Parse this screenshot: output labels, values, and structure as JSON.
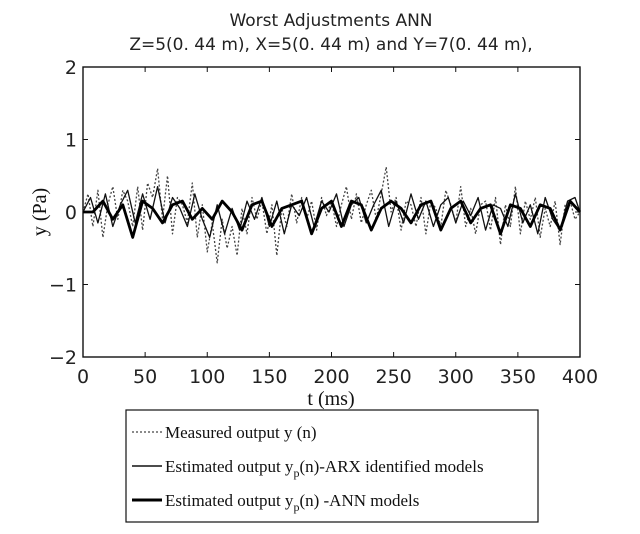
{
  "chart_data": {
    "type": "line",
    "title": "Worst Adjustments ANN",
    "subtitle": "Z=5(0. 44 m), X=5(0. 44 m) and Y=7(0. 44 m),",
    "xlabel": "t (ms)",
    "ylabel": "y (Pa)",
    "xlim": [
      0,
      400
    ],
    "ylim": [
      -2,
      2
    ],
    "xticks": [
      "0",
      "50",
      "100",
      "150",
      "200",
      "250",
      "300",
      "350",
      "400"
    ],
    "yticks": [
      "2",
      "1",
      "0",
      "−1",
      "−2"
    ],
    "ytick_values": [
      2,
      1,
      0,
      -1,
      -2
    ],
    "xtick_values": [
      0,
      50,
      100,
      150,
      200,
      250,
      300,
      350,
      400
    ],
    "grid": false,
    "legend_position": "below",
    "series": [
      {
        "name": "Measured output y (n)",
        "style": "dotted",
        "color": "#444444",
        "x": [
          0,
          4,
          8,
          12,
          16,
          20,
          24,
          28,
          32,
          36,
          40,
          44,
          48,
          52,
          56,
          60,
          64,
          68,
          72,
          76,
          80,
          84,
          88,
          92,
          96,
          100,
          104,
          108,
          112,
          116,
          120,
          124,
          128,
          132,
          136,
          140,
          144,
          148,
          152,
          156,
          160,
          164,
          168,
          172,
          176,
          180,
          184,
          188,
          192,
          196,
          200,
          204,
          208,
          212,
          216,
          220,
          224,
          228,
          232,
          236,
          240,
          244,
          248,
          252,
          256,
          260,
          264,
          268,
          272,
          276,
          280,
          284,
          288,
          292,
          296,
          300,
          304,
          308,
          312,
          316,
          320,
          324,
          328,
          332,
          336,
          340,
          344,
          348,
          352,
          356,
          360,
          364,
          368,
          372,
          376,
          380,
          384,
          388,
          392,
          396,
          400
        ],
        "values": [
          0.0,
          0.25,
          -0.2,
          0.3,
          -0.35,
          0.1,
          0.35,
          -0.1,
          0.3,
          0.15,
          -0.2,
          0.35,
          -0.25,
          0.4,
          0.2,
          0.6,
          -0.1,
          0.5,
          -0.3,
          0.2,
          0.1,
          -0.15,
          0.4,
          -0.35,
          0.1,
          -0.55,
          -0.15,
          -0.7,
          -0.1,
          -0.5,
          -0.2,
          -0.6,
          0.05,
          -0.3,
          0.2,
          -0.1,
          0.15,
          -0.3,
          0.1,
          -0.6,
          0.05,
          -0.2,
          0.25,
          -0.15,
          0.2,
          -0.1,
          0.15,
          -0.25,
          0.2,
          -0.05,
          0.15,
          -0.2,
          0.1,
          0.35,
          -0.1,
          0.25,
          -0.15,
          0.1,
          0.3,
          -0.1,
          0.25,
          0.62,
          0.0,
          0.2,
          -0.25,
          0.15,
          0.1,
          -0.2,
          0.2,
          -0.3,
          0.15,
          0.05,
          -0.2,
          0.3,
          0.1,
          -0.15,
          0.35,
          -0.2,
          0.05,
          -0.3,
          0.1,
          0.15,
          -0.25,
          0.2,
          -0.45,
          0.1,
          -0.2,
          0.35,
          -0.3,
          0.15,
          -0.1,
          0.2,
          -0.35,
          0.05,
          -0.2,
          0.15,
          -0.45,
          0.1,
          0.15,
          -0.1,
          0.0
        ]
      },
      {
        "name": "Estimated output yp(n)-ARX identified models",
        "style": "solid-thin",
        "color": "#111111",
        "x": [
          0,
          6,
          12,
          18,
          24,
          30,
          36,
          42,
          48,
          54,
          60,
          66,
          72,
          78,
          84,
          90,
          96,
          102,
          108,
          114,
          120,
          126,
          132,
          138,
          144,
          150,
          156,
          162,
          168,
          174,
          180,
          186,
          192,
          198,
          204,
          210,
          216,
          222,
          228,
          234,
          240,
          246,
          252,
          258,
          264,
          270,
          276,
          282,
          288,
          294,
          300,
          306,
          312,
          318,
          324,
          330,
          336,
          342,
          348,
          354,
          360,
          366,
          372,
          378,
          384,
          390,
          396,
          400
        ],
        "values": [
          0.0,
          0.2,
          -0.15,
          0.25,
          -0.2,
          0.1,
          0.3,
          -0.15,
          0.25,
          -0.1,
          0.35,
          -0.15,
          0.2,
          0.05,
          -0.2,
          0.25,
          -0.1,
          -0.35,
          0.1,
          -0.3,
          0.05,
          -0.25,
          0.15,
          -0.1,
          0.2,
          -0.2,
          0.15,
          -0.3,
          0.1,
          -0.05,
          0.2,
          -0.2,
          0.15,
          0.0,
          0.25,
          -0.2,
          0.1,
          0.2,
          -0.15,
          0.1,
          0.3,
          -0.2,
          0.15,
          -0.15,
          0.25,
          -0.1,
          0.15,
          -0.2,
          0.1,
          0.2,
          -0.15,
          0.15,
          -0.05,
          0.2,
          -0.25,
          0.1,
          0.05,
          -0.2,
          0.25,
          -0.15,
          0.1,
          -0.3,
          0.2,
          -0.1,
          -0.25,
          0.15,
          0.2,
          0.0
        ]
      },
      {
        "name": "Estimated output yp(n)-ANN models",
        "style": "solid-thick",
        "color": "#000000",
        "x": [
          0,
          8,
          16,
          24,
          32,
          40,
          48,
          56,
          64,
          72,
          80,
          88,
          96,
          104,
          112,
          120,
          128,
          136,
          144,
          152,
          160,
          168,
          176,
          184,
          192,
          200,
          208,
          216,
          224,
          232,
          240,
          248,
          256,
          264,
          272,
          280,
          288,
          296,
          304,
          312,
          320,
          328,
          336,
          344,
          352,
          360,
          368,
          376,
          384,
          392,
          400
        ],
        "values": [
          0.0,
          0.0,
          0.15,
          -0.1,
          0.1,
          -0.35,
          0.15,
          0.05,
          -0.15,
          0.1,
          0.15,
          -0.1,
          0.05,
          -0.1,
          0.15,
          0.0,
          -0.25,
          0.1,
          0.15,
          -0.2,
          0.05,
          0.1,
          0.15,
          -0.3,
          0.05,
          0.15,
          -0.2,
          0.15,
          0.1,
          -0.25,
          0.05,
          0.15,
          0.05,
          -0.15,
          0.1,
          0.15,
          -0.25,
          0.05,
          0.15,
          -0.15,
          0.05,
          0.1,
          -0.3,
          0.1,
          0.05,
          -0.2,
          0.1,
          0.05,
          -0.25,
          0.15,
          0.0
        ]
      }
    ]
  },
  "legend": {
    "items": [
      {
        "text": "Measured output y (n)"
      },
      {
        "text": "Estimated output y",
        "sub": "p",
        "suffix": "(n)-ARX identified models"
      },
      {
        "text": "Estimated output y",
        "sub": "p",
        "suffix": "(n) -ANN models"
      }
    ]
  }
}
